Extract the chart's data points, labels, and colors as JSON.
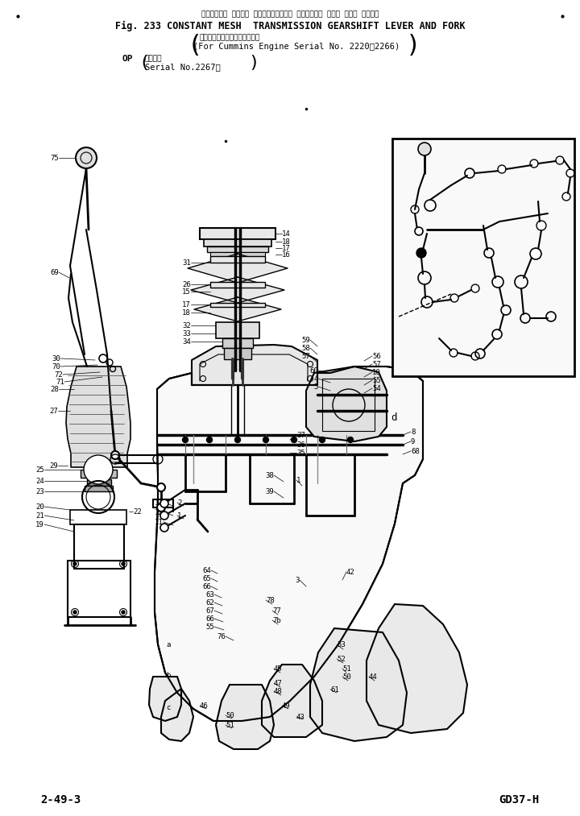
{
  "bg_color": "#ffffff",
  "fig_width": 7.2,
  "fig_height": 10.13,
  "dpi": 100,
  "title_jp": "コンスタント メッシュ トランスミッション ギヤーシフト レバー および フォーク",
  "title_en": "Fig. 233 CONSTANT MESH  TRANSMISSION GEARSHIFT LEVER AND FORK",
  "subtitle_jp": "（カミンズエンジン用適用号機",
  "subtitle_en": "(For Cummins Engine Serial No. 2220～2266)",
  "op_jp": "適用号機",
  "op_en": "Serial No.2267～",
  "footer_left": "2-49-3",
  "footer_right": "GD37-H",
  "inset_note": "Serial No. 2267～"
}
